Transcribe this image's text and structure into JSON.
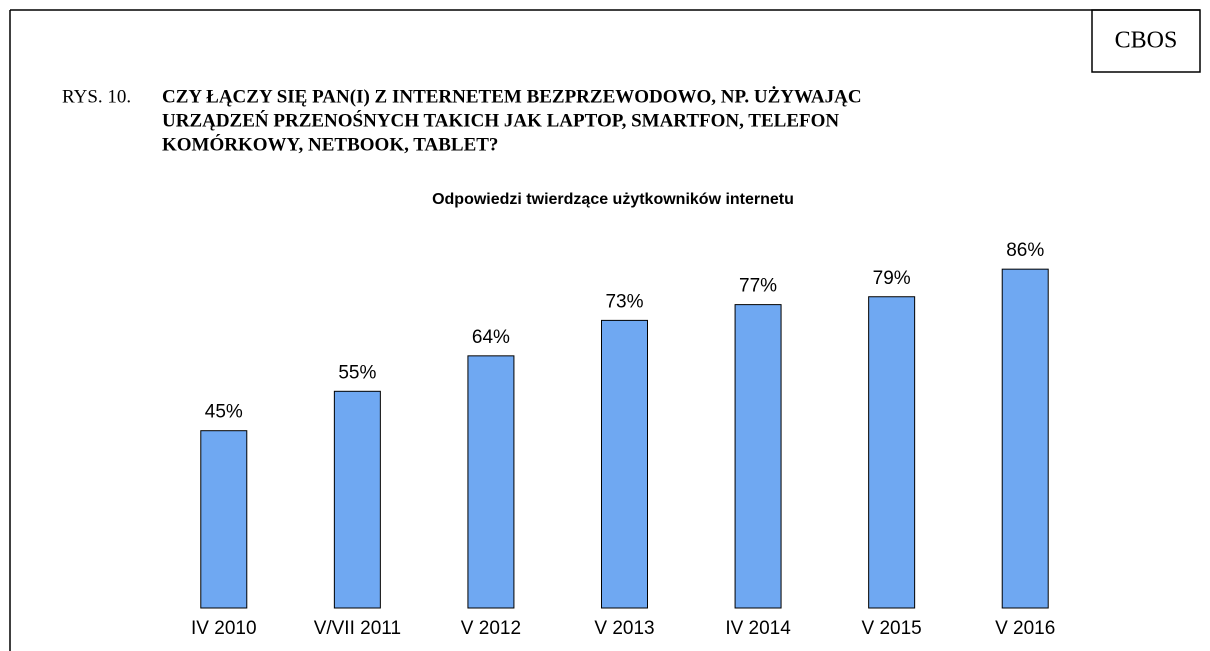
{
  "source": "CBOS",
  "figure_label": "RYS. 10.",
  "title": [
    "CZY ŁĄCZY SIĘ PAN(I) Z INTERNETEM BEZPRZEWODOWO, NP. UŻYWAJĄC",
    "URZĄDZEŃ PRZENOŚNYCH TAKICH JAK LAPTOP, SMARTFON, TELEFON",
    "KOMÓRKOWY, NETBOOK, TABLET?"
  ],
  "chart_data": {
    "type": "bar",
    "subtitle": "Odpowiedzi twierdzące użytkowników internetu",
    "categories": [
      "IV 2010",
      "V/VII 2011",
      "V 2012",
      "V 2013",
      "IV 2014",
      "V 2015",
      "V 2016"
    ],
    "values": [
      45,
      55,
      64,
      73,
      77,
      79,
      86
    ],
    "value_labels": [
      "45%",
      "55%",
      "64%",
      "73%",
      "77%",
      "79%",
      "86%"
    ],
    "color": "#6fa8f2",
    "ylim": [
      0,
      100
    ]
  }
}
